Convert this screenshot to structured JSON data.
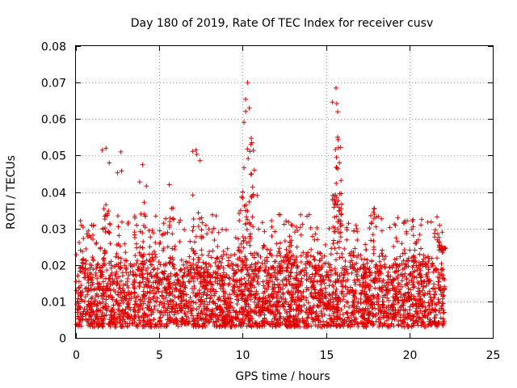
{
  "chart_data": {
    "type": "scatter",
    "title": "Day 180 of 2019, Rate Of TEC Index for receiver cusv",
    "xlabel": "GPS time / hours",
    "ylabel": "ROTI / TECUs",
    "xlim": [
      0,
      25
    ],
    "ylim": [
      0,
      0.08
    ],
    "xticks": [
      0,
      5,
      10,
      15,
      20,
      25
    ],
    "yticks": [
      0,
      0.01,
      0.02,
      0.03,
      0.04,
      0.05,
      0.06,
      0.07,
      0.08
    ],
    "xtick_labels": [
      "0",
      "5",
      "10",
      "15",
      "20",
      "25"
    ],
    "ytick_labels": [
      "0",
      "0.01",
      "0.02",
      "0.03",
      "0.04",
      "0.05",
      "0.06",
      "0.07",
      "0.08"
    ],
    "grid": true,
    "marker": "+",
    "series": [
      {
        "name": "ROTI",
        "color": "#e00000",
        "data_range_hours": [
          0,
          22.1
        ],
        "baseline_range": [
          0.003,
          0.025
        ],
        "peaks": [
          {
            "x": 1.8,
            "y": 0.052
          },
          {
            "x": 1.8,
            "y": 0.0365
          },
          {
            "x": 2.7,
            "y": 0.051
          },
          {
            "x": 4.0,
            "y": 0.0475
          },
          {
            "x": 5.6,
            "y": 0.042
          },
          {
            "x": 7.2,
            "y": 0.0515
          },
          {
            "x": 10.0,
            "y": 0.04
          },
          {
            "x": 10.3,
            "y": 0.07
          },
          {
            "x": 10.4,
            "y": 0.063
          },
          {
            "x": 10.5,
            "y": 0.053
          },
          {
            "x": 10.7,
            "y": 0.046
          },
          {
            "x": 15.6,
            "y": 0.0685
          },
          {
            "x": 15.7,
            "y": 0.062
          },
          {
            "x": 15.7,
            "y": 0.055
          },
          {
            "x": 15.8,
            "y": 0.048
          },
          {
            "x": 15.4,
            "y": 0.039
          },
          {
            "x": 17.9,
            "y": 0.0355
          },
          {
            "x": 21.7,
            "y": 0.0285
          },
          {
            "x": 22.0,
            "y": 0.024
          }
        ]
      }
    ]
  }
}
